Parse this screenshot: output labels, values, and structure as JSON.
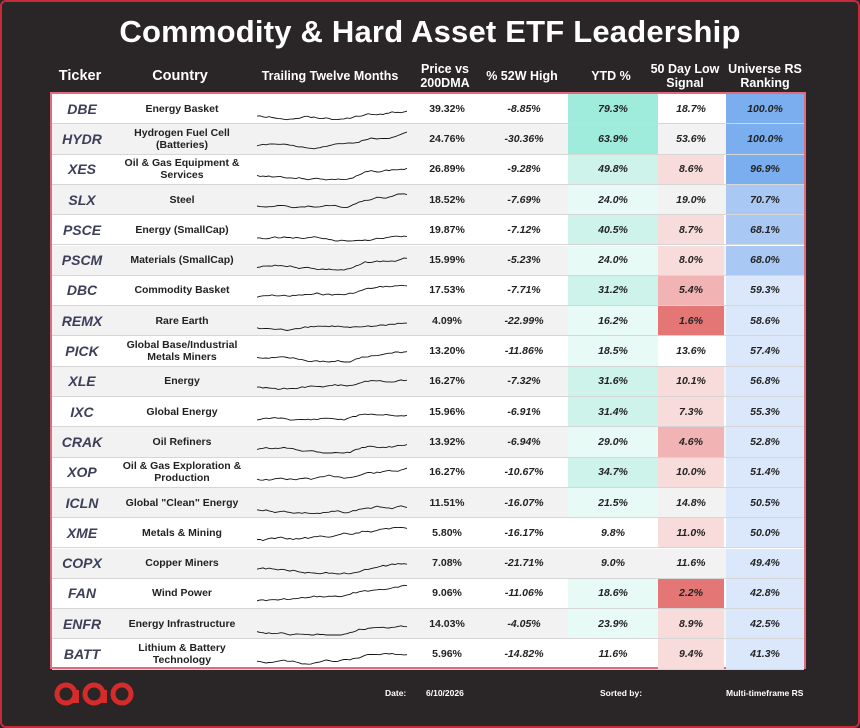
{
  "title": "Commodity & Hard Asset ETF Leadership",
  "headers": {
    "ticker": "Ticker",
    "country": "Country",
    "ttm": "Trailing Twelve Months",
    "price": "Price vs 200DMA",
    "high": "% 52W High",
    "ytd": "YTD %",
    "low": "50 Day Low Signal",
    "rs": "Universe RS Ranking"
  },
  "colors": {
    "ytd_strong": "#a0ecdc",
    "ytd_mid": "#cdf3ea",
    "ytd_light": "#e8faf5",
    "low_strong": "#e47676",
    "low_mid": "#f1b3b3",
    "low_light": "#f8dcdc",
    "rs_strong": "#7aaeef",
    "rs_mid": "#a9c9f4",
    "rs_light": "#dbe8fb"
  },
  "rows": [
    {
      "ticker": "DBE",
      "country": "Energy Basket",
      "price": "39.32%",
      "high": "-8.85%",
      "ytd": "79.3%",
      "low": "18.7%",
      "rs": "100.0%"
    },
    {
      "ticker": "HYDR",
      "country": "Hydrogen Fuel Cell (Batteries)",
      "price": "24.76%",
      "high": "-30.36%",
      "ytd": "63.9%",
      "low": "53.6%",
      "rs": "100.0%"
    },
    {
      "ticker": "XES",
      "country": "Oil & Gas Equipment & Services",
      "price": "26.89%",
      "high": "-9.28%",
      "ytd": "49.8%",
      "low": "8.6%",
      "rs": "96.9%"
    },
    {
      "ticker": "SLX",
      "country": "Steel",
      "price": "18.52%",
      "high": "-7.69%",
      "ytd": "24.0%",
      "low": "19.0%",
      "rs": "70.7%"
    },
    {
      "ticker": "PSCE",
      "country": "Energy (SmallCap)",
      "price": "19.87%",
      "high": "-7.12%",
      "ytd": "40.5%",
      "low": "8.7%",
      "rs": "68.1%"
    },
    {
      "ticker": "PSCM",
      "country": "Materials (SmallCap)",
      "price": "15.99%",
      "high": "-5.23%",
      "ytd": "24.0%",
      "low": "8.0%",
      "rs": "68.0%"
    },
    {
      "ticker": "DBC",
      "country": "Commodity Basket",
      "price": "17.53%",
      "high": "-7.71%",
      "ytd": "31.2%",
      "low": "5.4%",
      "rs": "59.3%"
    },
    {
      "ticker": "REMX",
      "country": "Rare Earth",
      "price": "4.09%",
      "high": "-22.99%",
      "ytd": "16.2%",
      "low": "1.6%",
      "rs": "58.6%"
    },
    {
      "ticker": "PICK",
      "country": "Global Base/Industrial Metals Miners",
      "price": "13.20%",
      "high": "-11.86%",
      "ytd": "18.5%",
      "low": "13.6%",
      "rs": "57.4%"
    },
    {
      "ticker": "XLE",
      "country": "Energy",
      "price": "16.27%",
      "high": "-7.32%",
      "ytd": "31.6%",
      "low": "10.1%",
      "rs": "56.8%"
    },
    {
      "ticker": "IXC",
      "country": "Global Energy",
      "price": "15.96%",
      "high": "-6.91%",
      "ytd": "31.4%",
      "low": "7.3%",
      "rs": "55.3%"
    },
    {
      "ticker": "CRAK",
      "country": "Oil Refiners",
      "price": "13.92%",
      "high": "-6.94%",
      "ytd": "29.0%",
      "low": "4.6%",
      "rs": "52.8%"
    },
    {
      "ticker": "XOP",
      "country": "Oil & Gas Exploration & Production",
      "price": "16.27%",
      "high": "-10.67%",
      "ytd": "34.7%",
      "low": "10.0%",
      "rs": "51.4%"
    },
    {
      "ticker": "ICLN",
      "country": "Global \"Clean\" Energy",
      "price": "11.51%",
      "high": "-16.07%",
      "ytd": "21.5%",
      "low": "14.8%",
      "rs": "50.5%"
    },
    {
      "ticker": "XME",
      "country": "Metals & Mining",
      "price": "5.80%",
      "high": "-16.17%",
      "ytd": "9.8%",
      "low": "11.0%",
      "rs": "50.0%"
    },
    {
      "ticker": "COPX",
      "country": "Copper Miners",
      "price": "7.08%",
      "high": "-21.71%",
      "ytd": "9.0%",
      "low": "11.6%",
      "rs": "49.4%"
    },
    {
      "ticker": "FAN",
      "country": "Wind Power",
      "price": "9.06%",
      "high": "-11.06%",
      "ytd": "18.6%",
      "low": "2.2%",
      "rs": "42.8%"
    },
    {
      "ticker": "ENFR",
      "country": "Energy Infrastructure",
      "price": "14.03%",
      "high": "-4.05%",
      "ytd": "23.9%",
      "low": "8.9%",
      "rs": "42.5%"
    },
    {
      "ticker": "BATT",
      "country": "Lithium & Battery Technology",
      "price": "5.96%",
      "high": "-14.82%",
      "ytd": "11.6%",
      "low": "9.4%",
      "rs": "41.3%"
    }
  ],
  "footer": {
    "date_label": "Date:",
    "date_value": "6/10/2026",
    "sorted_label": "Sorted by:",
    "sorted_value": "Multi-timeframe RS"
  }
}
